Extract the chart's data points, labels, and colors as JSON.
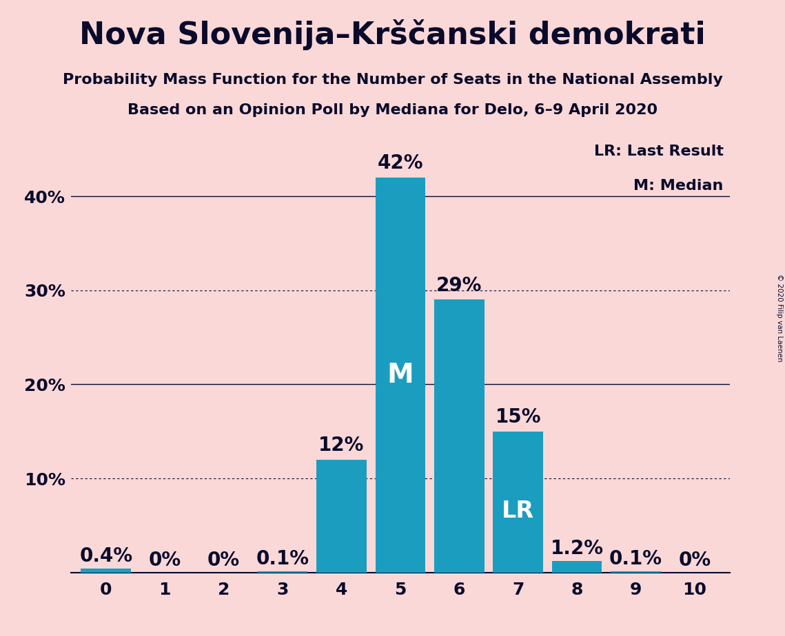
{
  "title": "Nova Slovenija–Krščanski demokrati",
  "subtitle1": "Probability Mass Function for the Number of Seats in the National Assembly",
  "subtitle2": "Based on an Opinion Poll by Mediana for Delo, 6–9 April 2020",
  "copyright": "© 2020 Filip van Laenen",
  "categories": [
    0,
    1,
    2,
    3,
    4,
    5,
    6,
    7,
    8,
    9,
    10
  ],
  "values": [
    0.4,
    0.0,
    0.0,
    0.1,
    12.0,
    42.0,
    29.0,
    15.0,
    1.2,
    0.1,
    0.0
  ],
  "bar_color": "#1b9dbf",
  "background_color": "#fad8d8",
  "bar_labels": [
    "0.4%",
    "0%",
    "0%",
    "0.1%",
    "12%",
    "42%",
    "29%",
    "15%",
    "1.2%",
    "0.1%",
    "0%"
  ],
  "median_bar": 5,
  "lr_bar": 7,
  "ylim": [
    0,
    46
  ],
  "yticks": [
    0,
    10,
    20,
    30,
    40
  ],
  "ytick_labels": [
    "",
    "10%",
    "20%",
    "30%",
    "40%"
  ],
  "grid_solid": [
    20,
    40
  ],
  "grid_dotted": [
    10,
    30
  ],
  "legend_lr": "LR: Last Result",
  "legend_m": "M: Median",
  "title_fontsize": 32,
  "subtitle_fontsize": 16,
  "label_fontsize": 16,
  "tick_fontsize": 18,
  "annotation_fontsize": 20,
  "inside_label_fontsize": 28
}
